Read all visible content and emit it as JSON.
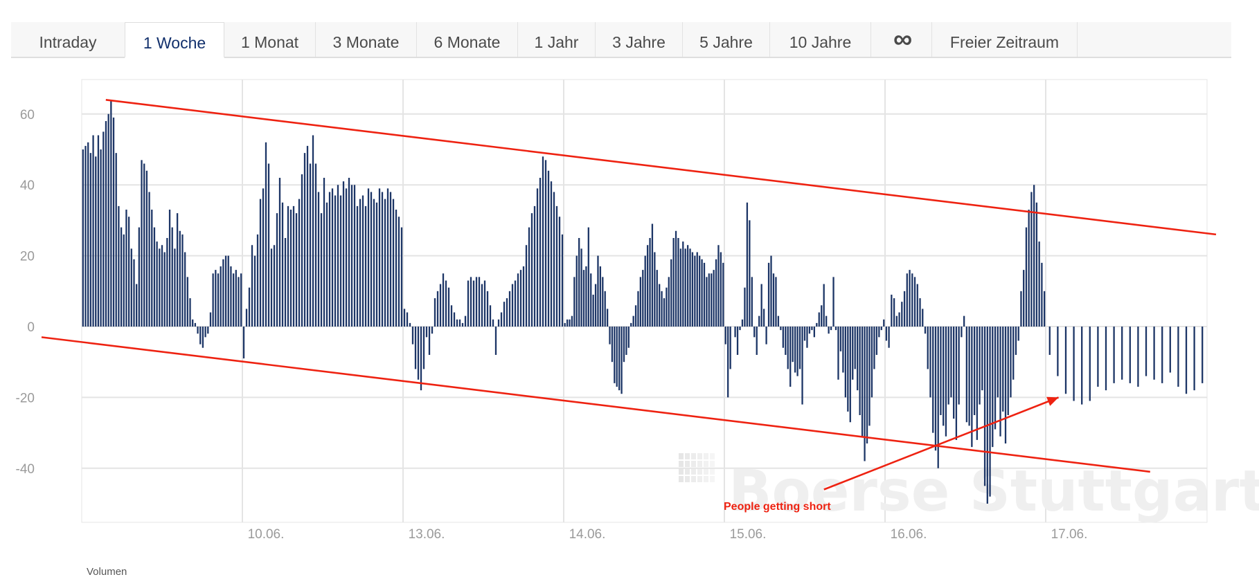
{
  "tabs": [
    {
      "label": "Intraday",
      "active": false
    },
    {
      "label": "1 Woche",
      "active": true
    },
    {
      "label": "1 Monat",
      "active": false
    },
    {
      "label": "3 Monate",
      "active": false
    },
    {
      "label": "6 Monate",
      "active": false
    },
    {
      "label": "1 Jahr",
      "active": false
    },
    {
      "label": "3 Jahre",
      "active": false
    },
    {
      "label": "5 Jahre",
      "active": false
    },
    {
      "label": "10 Jahre",
      "active": false
    },
    {
      "label": "∞",
      "active": false
    },
    {
      "label": "Freier Zeitraum",
      "active": false
    }
  ],
  "watermark": {
    "text": "Boerse Stuttgart"
  },
  "annotation": {
    "text": "People getting short"
  },
  "footer": {
    "label": "Volumen"
  },
  "colors": {
    "bars": "#1c3566",
    "trendlines": "#ee2211",
    "grid": "#e4e4e4"
  },
  "chart_data": {
    "type": "bar",
    "title": "",
    "xlabel": "",
    "ylabel": "",
    "ylim": [
      -55,
      70
    ],
    "yticks": [
      60,
      40,
      20,
      0,
      -20,
      -40
    ],
    "grid": true,
    "xticks": [
      {
        "label": "10.06.",
        "t": 1
      },
      {
        "label": "13.06.",
        "t": 2
      },
      {
        "label": "14.06.",
        "t": 3
      },
      {
        "label": "15.06.",
        "t": 4
      },
      {
        "label": "16.06.",
        "t": 5
      },
      {
        "label": "17.06.",
        "t": 6
      }
    ],
    "t_range": [
      0,
      7
    ],
    "days": [
      {
        "start": 0,
        "values": [
          50,
          51,
          52,
          49,
          54,
          48,
          54,
          50,
          55,
          58,
          60,
          64,
          59,
          49,
          34,
          28,
          26,
          33,
          31,
          22,
          19,
          12,
          28,
          47,
          46,
          44,
          38,
          33,
          28,
          24,
          22,
          23,
          21,
          25,
          33,
          28,
          22,
          32,
          27,
          26,
          21,
          14,
          8,
          2,
          1,
          -2,
          -5,
          -6,
          -3,
          -2,
          4,
          15,
          16,
          15,
          17,
          19,
          20,
          20,
          17,
          15,
          16,
          14,
          15
        ]
      },
      {
        "start": 1,
        "values": [
          -9,
          5,
          11,
          23,
          20,
          26,
          36,
          39,
          52,
          46,
          22,
          23,
          32,
          42,
          35,
          25,
          34,
          33,
          34,
          32,
          36,
          43,
          49,
          51,
          46,
          54,
          46,
          38,
          32,
          42,
          35,
          38,
          39,
          37,
          40,
          37,
          41,
          39,
          42,
          40,
          40,
          34,
          36,
          37,
          34,
          39,
          38,
          36,
          35,
          39,
          38,
          36,
          39,
          38,
          36,
          33,
          31,
          28
        ]
      },
      {
        "start": 2,
        "values": [
          5,
          4,
          1,
          -5,
          -12,
          -15,
          -18,
          -12,
          -3,
          -8,
          -2,
          8,
          10,
          12,
          15,
          13,
          11,
          6,
          4,
          2,
          2,
          1,
          3,
          13,
          14,
          13,
          14,
          14,
          12,
          13,
          10,
          6,
          2,
          -8,
          2,
          4,
          7,
          8,
          10,
          12,
          13,
          15,
          16,
          17,
          23,
          28,
          32,
          34,
          39,
          42,
          48,
          47,
          44,
          41,
          38,
          34,
          31,
          26
        ]
      },
      {
        "start": 3,
        "values": [
          1,
          2,
          2,
          3,
          14,
          20,
          25,
          22,
          16,
          17,
          28,
          15,
          9,
          12,
          20,
          17,
          14,
          10,
          5,
          -5,
          -10,
          -16,
          -17,
          -18,
          -19,
          -10,
          -8,
          -6,
          1,
          3,
          6,
          10,
          14,
          16,
          20,
          23,
          25,
          29,
          21,
          16,
          12,
          10,
          8,
          11,
          14,
          19,
          25,
          27,
          25,
          22,
          24,
          22,
          23,
          22,
          21,
          20,
          21,
          20,
          19,
          18,
          14,
          15,
          15,
          16,
          19,
          23,
          21,
          18
        ]
      },
      {
        "start": 4,
        "values": [
          -5,
          -20,
          -12,
          0,
          -3,
          -8,
          -1,
          2,
          11,
          35,
          30,
          14,
          -3,
          -8,
          3,
          12,
          5,
          -5,
          18,
          20,
          15,
          14,
          3,
          -1,
          -6,
          -8,
          -12,
          -17,
          -10,
          -13,
          -14,
          -12,
          -22,
          -4,
          -6,
          -2,
          -1,
          -3,
          1,
          4,
          6,
          12,
          3,
          -2,
          -1,
          14,
          -1,
          -15,
          -7,
          -13,
          -20,
          -24,
          -27,
          -15,
          -12,
          -18,
          -25,
          -31,
          -38,
          -33,
          -28,
          -20,
          -12,
          -8,
          -3,
          -1,
          2
        ]
      },
      {
        "start": 5,
        "values": [
          -4,
          -6,
          9,
          8,
          3,
          4,
          7,
          10,
          15,
          16,
          15,
          14,
          12,
          8,
          5,
          -2,
          -12,
          -20,
          -30,
          -35,
          -40,
          -25,
          -28,
          -31,
          -22,
          -20,
          -26,
          -32,
          -22,
          -3,
          3,
          -27,
          -28,
          -34,
          -25,
          -32,
          -22,
          -18,
          -45,
          -50,
          -48,
          -34,
          -29,
          -20,
          -31,
          -24,
          -33,
          -25,
          -20,
          -15,
          -8,
          -4,
          10,
          16,
          28,
          33,
          38,
          40,
          35,
          24,
          18,
          10
        ]
      },
      {
        "start": 6,
        "values": [
          -8,
          -14,
          -19,
          -21,
          -22,
          -21,
          -17,
          -18,
          -16,
          -15,
          -16,
          -17,
          -14,
          -15,
          -16,
          -13,
          -17,
          -19,
          -18,
          -16
        ]
      }
    ],
    "trendlines": [
      {
        "from": {
          "t": 0.15,
          "y": 64
        },
        "to": {
          "t": 7.06,
          "y": 26
        }
      },
      {
        "from": {
          "t": -0.25,
          "y": -3
        },
        "to": {
          "t": 6.65,
          "y": -41
        }
      }
    ],
    "annotation_arrow": {
      "from": {
        "t": 4.62,
        "y": -46
      },
      "to": {
        "t": 6.08,
        "y": -20
      }
    }
  }
}
